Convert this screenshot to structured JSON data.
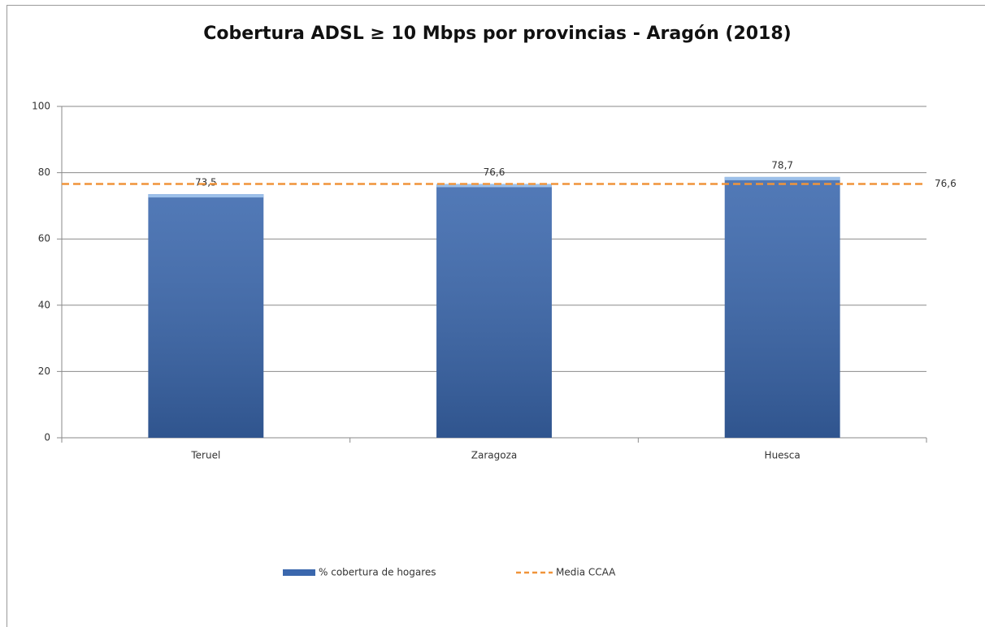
{
  "chart_data": {
    "type": "bar",
    "title": "Cobertura ADSL ≥ 10 Mbps por provincias - Aragón (2018)",
    "categories": [
      "Teruel",
      "Zaragoza",
      "Huesca"
    ],
    "series": [
      {
        "name": "% cobertura de hogares",
        "color": "#3a67ad",
        "values": [
          73.5,
          76.6,
          78.7
        ],
        "value_labels": [
          "73,5",
          "76,6",
          "78,7"
        ]
      }
    ],
    "reference_line": {
      "name": "Media CCAA",
      "color": "#f0943a",
      "value": 76.6,
      "value_label": "76,6"
    },
    "ylim": [
      0,
      100
    ],
    "yticks": [
      0,
      20,
      40,
      60,
      80,
      100
    ],
    "grid": true,
    "legend": "bottom"
  }
}
